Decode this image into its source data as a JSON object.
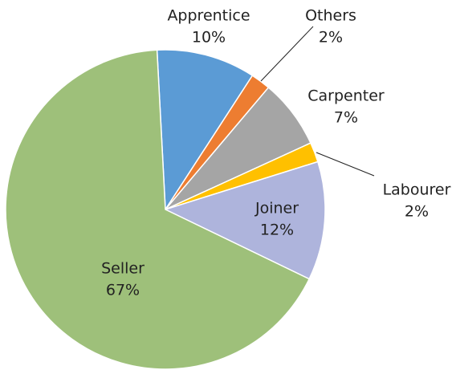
{
  "chart_data": {
    "type": "pie",
    "categories": [
      "Apprentice",
      "Others",
      "Carpenter",
      "Labourer",
      "Joiner",
      "Seller"
    ],
    "values": [
      10,
      2,
      7,
      2,
      12,
      67
    ],
    "value_labels": [
      "10%",
      "2%",
      "7%",
      "2%",
      "12%",
      "67%"
    ],
    "colors": [
      "#5b9bd5",
      "#ed7d31",
      "#a5a5a5",
      "#ffc000",
      "#aeb4dc",
      "#9ec07a"
    ]
  }
}
